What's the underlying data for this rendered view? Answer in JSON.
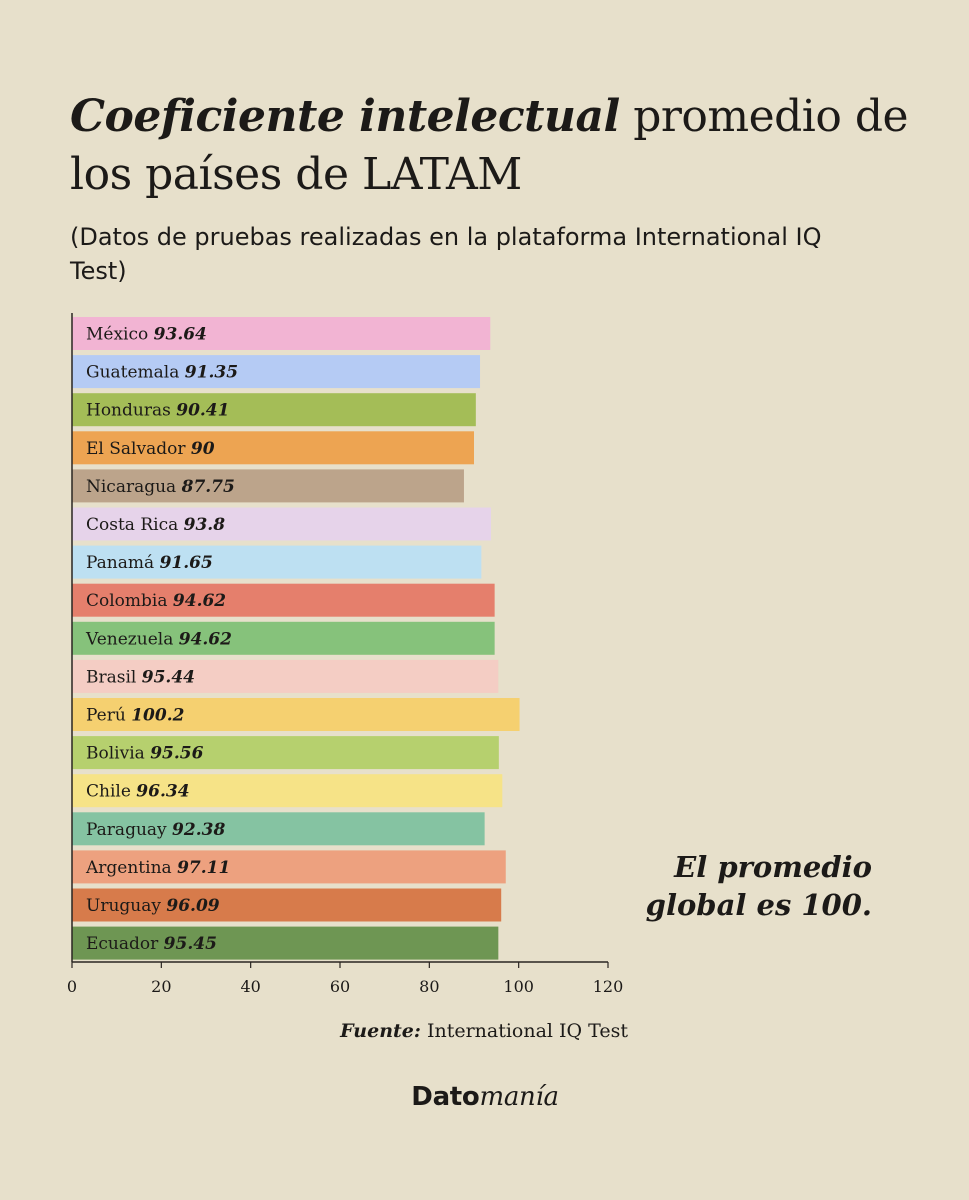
{
  "title": {
    "part1": "Coeficiente intelectual",
    "part2": " promedio de los países de LATAM"
  },
  "subtitle": "(Datos de pruebas realizadas en la plataforma International IQ Test)",
  "note": "El promedio\nglobal es 100.",
  "source": {
    "label": "Fuente:",
    "text": " International IQ Test"
  },
  "brand": {
    "part1": "Dato",
    "part2": "manía"
  },
  "chart_data": {
    "type": "bar",
    "orientation": "horizontal",
    "categories": [
      "México",
      "Guatemala",
      "Honduras",
      "El Salvador",
      "Nicaragua",
      "Costa Rica",
      "Panamá",
      "Colombia",
      "Venezuela",
      "Brasil",
      "Perú",
      "Bolivia",
      "Chile",
      "Paraguay",
      "Argentina",
      "Uruguay",
      "Ecuador"
    ],
    "values": [
      93.64,
      91.35,
      90.41,
      90,
      87.75,
      93.8,
      91.65,
      94.62,
      94.62,
      95.44,
      100.2,
      95.56,
      96.34,
      92.38,
      97.11,
      96.09,
      95.45
    ],
    "value_labels": [
      "93.64",
      "91.35",
      "90.41",
      "90",
      "87.75",
      "93.8",
      "91.65",
      "94.62",
      "94.62",
      "95.44",
      "100.2",
      "95.56",
      "96.34",
      "92.38",
      "97.11",
      "96.09",
      "95.45"
    ],
    "colors": [
      "#f2b4d3",
      "#b5cbf4",
      "#a4bd57",
      "#eda452",
      "#bca48b",
      "#e6d3ea",
      "#bde0f2",
      "#e57f6c",
      "#86c27b",
      "#f4cdc4",
      "#f5d070",
      "#b6d06e",
      "#f6e387",
      "#85c3a2",
      "#eda17f",
      "#d77b4b",
      "#6e9653"
    ],
    "xlim": [
      0,
      120
    ],
    "xticks": [
      0,
      20,
      40,
      60,
      80,
      100,
      120
    ],
    "xlabel": "",
    "ylabel": "",
    "grid": false,
    "legend": "none"
  }
}
